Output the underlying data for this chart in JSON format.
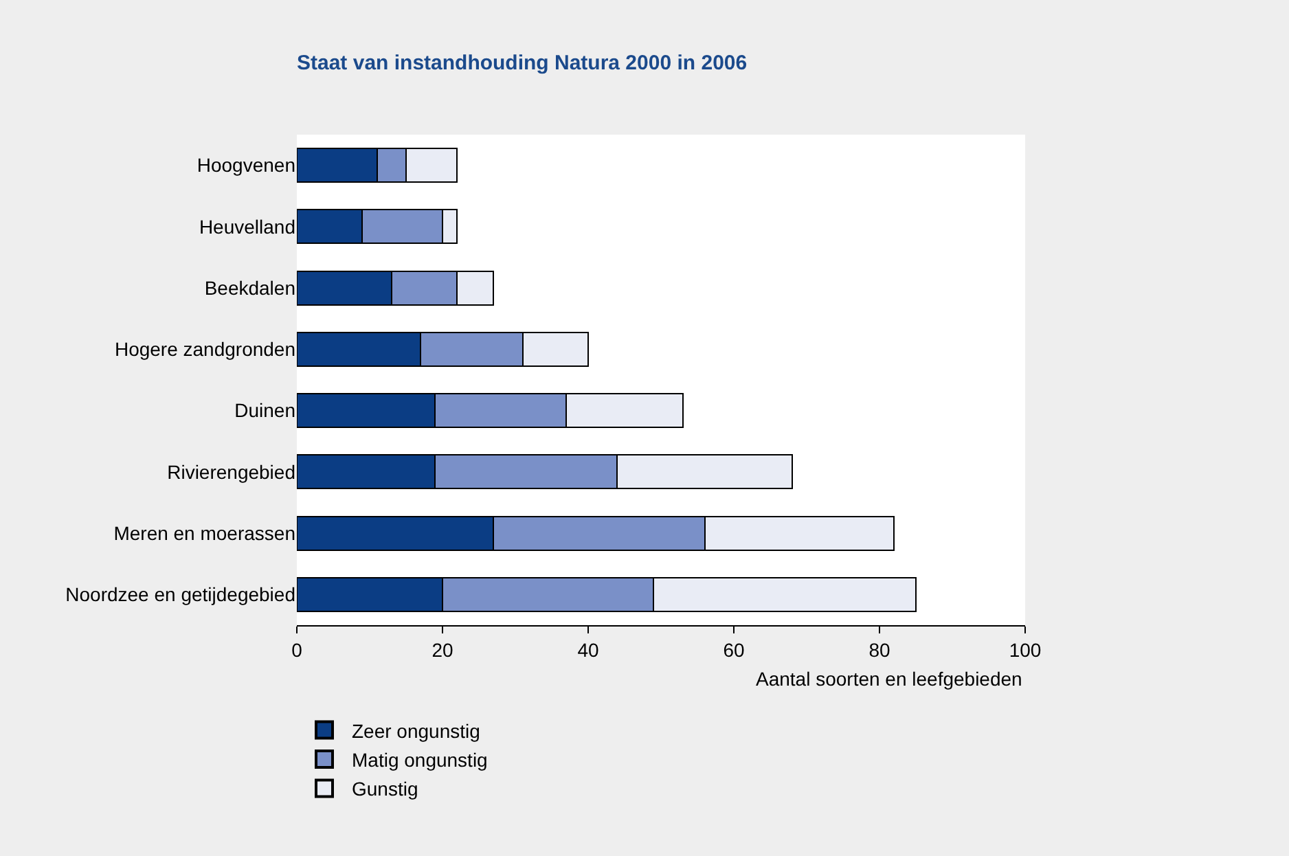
{
  "chart_data": {
    "type": "bar",
    "orientation": "horizontal",
    "stacked": true,
    "title": "Staat van instandhouding Natura 2000 in 2006",
    "xlabel": "Aantal soorten en leefgebieden",
    "categories": [
      "Hoogvenen",
      "Heuvelland",
      "Beekdalen",
      "Hogere zandgronden",
      "Duinen",
      "Rivierengebied",
      "Meren en moerassen",
      "Noordzee en getijdegebied"
    ],
    "series": [
      {
        "name": "Zeer ongunstig",
        "color": "#0b3d84",
        "values": [
          11,
          9,
          13,
          17,
          19,
          19,
          27,
          20
        ]
      },
      {
        "name": "Matig ongunstig",
        "color": "#7a90c8",
        "values": [
          4,
          11,
          9,
          14,
          18,
          25,
          29,
          29
        ]
      },
      {
        "name": "Gunstig",
        "color": "#e9ecf5",
        "values": [
          7,
          2,
          5,
          9,
          16,
          24,
          26,
          36
        ]
      }
    ],
    "xlim": [
      0,
      100
    ],
    "xticks": [
      0,
      20,
      40,
      60,
      80,
      100
    ],
    "grid": false,
    "legend": "bottom left"
  }
}
